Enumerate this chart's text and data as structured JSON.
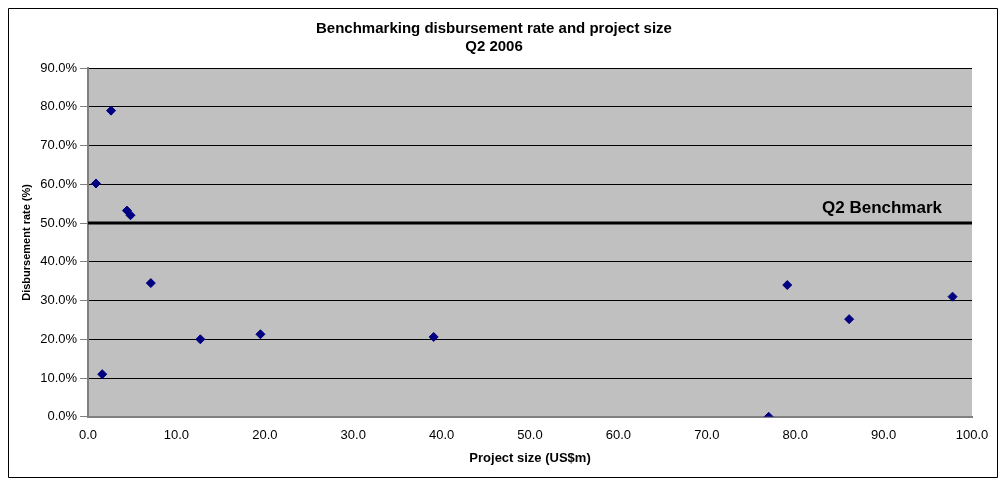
{
  "chart_data": {
    "type": "scatter",
    "title": "Benchmarking disbursement rate and project size",
    "subtitle": "Q2 2006",
    "xlabel": "Project size (US$m)",
    "ylabel": "Disbursement rate (%)",
    "series": [
      {
        "color": "#000080",
        "x": [
          0.9,
          1.6,
          2.6,
          4.4,
          4.8,
          7.1,
          12.7,
          19.5,
          39.1,
          77.0,
          79.1,
          86.1,
          97.8
        ],
        "values": [
          60.2,
          11.0,
          79.0,
          53.2,
          52.0,
          34.5,
          20.0,
          21.3,
          20.6,
          0.0,
          34.0,
          25.2,
          31.0
        ]
      }
    ],
    "xlim": [
      0,
      100
    ],
    "xticks": [
      {
        "value": 0,
        "label": "0.0"
      },
      {
        "value": 10,
        "label": "10.0"
      },
      {
        "value": 20,
        "label": "20.0"
      },
      {
        "value": 30,
        "label": "30.0"
      },
      {
        "value": 40,
        "label": "40.0"
      },
      {
        "value": 50,
        "label": "50.0"
      },
      {
        "value": 60,
        "label": "60.0"
      },
      {
        "value": 70,
        "label": "70.0"
      },
      {
        "value": 80,
        "label": "80.0"
      },
      {
        "value": 90,
        "label": "90.0"
      },
      {
        "value": 100,
        "label": "100.0"
      }
    ],
    "ylim": [
      0,
      90
    ],
    "yticks": [
      {
        "value": 0,
        "label": "0.0%"
      },
      {
        "value": 10,
        "label": "10.0%"
      },
      {
        "value": 20,
        "label": "20.0%"
      },
      {
        "value": 30,
        "label": "30.0%"
      },
      {
        "value": 40,
        "label": "40.0%"
      },
      {
        "value": 50,
        "label": "50.0%"
      },
      {
        "value": 60,
        "label": "60.0%"
      },
      {
        "value": 70,
        "label": "70.0%"
      },
      {
        "value": 80,
        "label": "80.0%"
      },
      {
        "value": 90,
        "label": "90.0%"
      }
    ],
    "ref_lines": [
      {
        "axis": "y",
        "value": 50,
        "label": "Q2 Benchmark",
        "color": "#000000"
      }
    ],
    "grid": "y",
    "legend": false,
    "marker": "diamond"
  }
}
